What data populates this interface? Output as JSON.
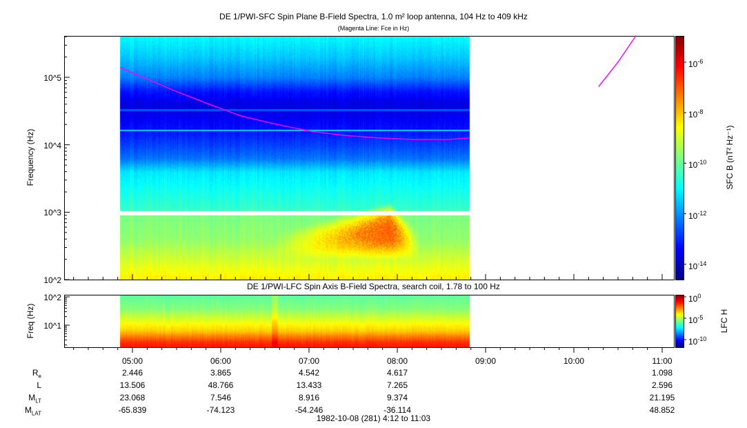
{
  "chart_data": [
    {
      "type": "heatmap",
      "title": "DE 1/PWI-SFC  Spin Plane B-Field Spectra, 1.0 m² loop antenna, 104 Hz to 409 kHz",
      "subtitle": "(Magenta Line: Fce in Hz)",
      "ylabel": "Frequency (Hz)",
      "yscale": "log",
      "ylim": [
        100,
        409000
      ],
      "y_ticks": [
        "10^2",
        "10^3",
        "10^4",
        "10^5"
      ],
      "data_time_range": [
        "04:52",
        "08:49"
      ],
      "gap_hz": [
        900,
        1050
      ],
      "colorbar": {
        "label": "SFC B (nT² Hz⁻¹)",
        "scale": "log",
        "range_log10": [
          -14.6,
          -4.96
        ],
        "ticks_log10": [
          -6,
          -8,
          -10,
          -12,
          -14
        ],
        "colormap": "jet"
      },
      "spectrum_profile_log10f_vs_log10B": [
        [
          5.61,
          -11.0
        ],
        [
          5.3,
          -11.5
        ],
        [
          5.0,
          -12.2
        ],
        [
          4.8,
          -13.2
        ],
        [
          4.6,
          -13.7
        ],
        [
          4.4,
          -13.5
        ],
        [
          4.2,
          -13.2
        ],
        [
          4.0,
          -12.8
        ],
        [
          3.8,
          -12.3
        ],
        [
          3.6,
          -11.2
        ],
        [
          3.3,
          -10.8
        ],
        [
          3.05,
          -10.5
        ],
        [
          2.95,
          -9.8
        ],
        [
          2.6,
          -9.6
        ],
        [
          2.3,
          -9.0
        ],
        [
          2.0,
          -8.4
        ]
      ],
      "lines_hz": [
        {
          "f": 16500,
          "log10B": -11.3
        },
        {
          "f": 33000,
          "log10B": -12.6
        }
      ],
      "enhancement": {
        "t_start": "06:35",
        "t_end": "08:15",
        "f_low": 200,
        "f_high": 1400,
        "peak_time": "07:55",
        "peak_log10B": -7.0
      },
      "fce_line": {
        "color": "#ff00ff",
        "segments": [
          [
            [
              "04:52",
              139000
            ],
            [
              "05:27",
              65400
            ],
            [
              "05:51",
              40900
            ],
            [
              "06:14",
              26700
            ],
            [
              "06:38",
              20100
            ],
            [
              "07:01",
              15900
            ],
            [
              "07:24",
              13800
            ],
            [
              "07:48",
              12600
            ],
            [
              "08:11",
              12000
            ],
            [
              "08:35",
              12000
            ],
            [
              "08:49",
              12600
            ]
          ],
          [
            [
              "10:17",
              73600
            ],
            [
              "10:30",
              168000
            ],
            [
              "10:42",
              409000
            ]
          ]
        ]
      }
    },
    {
      "type": "heatmap",
      "title": "DE 1/PWI-LFC  Spin Axis B-Field Spectra, search coil, 1.78 to 100 Hz",
      "ylabel": "Freq (Hz)",
      "yscale": "log",
      "ylim": [
        1.78,
        100
      ],
      "y_ticks": [
        "10^1",
        "10^2"
      ],
      "data_time_range": [
        "04:52",
        "08:49"
      ],
      "colorbar": {
        "label": "LFC H",
        "scale": "log",
        "range_log10": [
          -11.8,
          0.48
        ],
        "ticks_log10": [
          0,
          -5,
          -10
        ],
        "colormap": "jet"
      },
      "spectrum_profile_log10f_vs_log10B": [
        [
          2.0,
          -6.0
        ],
        [
          1.6,
          -5.6
        ],
        [
          1.3,
          -4.8
        ],
        [
          1.0,
          -4.0
        ],
        [
          0.8,
          -3.5
        ],
        [
          0.6,
          -2.5
        ],
        [
          0.4,
          -1.6
        ],
        [
          0.22,
          -1.3
        ]
      ]
    }
  ],
  "xaxis": {
    "ticks": [
      "05:00",
      "06:00",
      "07:00",
      "08:00",
      "09:00",
      "10:00",
      "11:00"
    ],
    "footer": "1982-10-08 (281) 4:12 to 11:03"
  },
  "ephemeris": {
    "rows": [
      {
        "label": "R",
        "sub": "e",
        "values": [
          "2.446",
          "3.865",
          "4.542",
          "4.617",
          "",
          "",
          "1.098"
        ]
      },
      {
        "label": "L",
        "sub": "",
        "values": [
          "13.506",
          "48.766",
          "13.433",
          "7.265",
          "",
          "",
          "2.596"
        ]
      },
      {
        "label": "M",
        "sub": "LT",
        "values": [
          "23.068",
          "7.546",
          "8.916",
          "9.374",
          "",
          "",
          "21.195"
        ]
      },
      {
        "label": "M",
        "sub": "LAT",
        "values": [
          "-65.839",
          "-74.123",
          "-54.246",
          "-36.114",
          "",
          "",
          "48.852"
        ]
      }
    ]
  }
}
